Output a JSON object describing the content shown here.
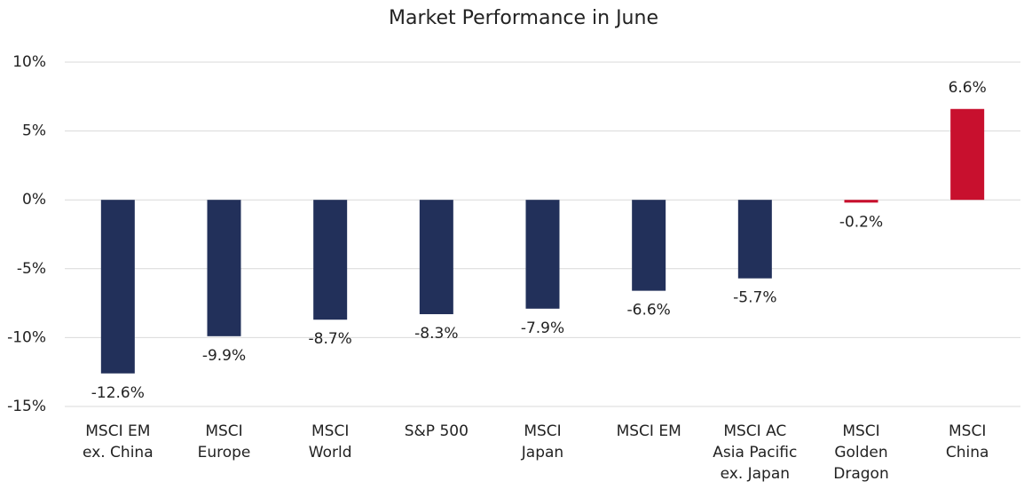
{
  "chart_data": {
    "type": "bar",
    "title": "Market Performance in June",
    "categories": [
      "MSCI EM\nex. China",
      "MSCI\nEurope",
      "MSCI\nWorld",
      "S&P 500",
      "MSCI\nJapan",
      "MSCI EM",
      "MSCI AC\nAsia Pacific\nex. Japan",
      "MSCI\nGolden\nDragon",
      "MSCI\nChina"
    ],
    "values": [
      -12.6,
      -9.9,
      -8.7,
      -8.3,
      -7.9,
      -6.6,
      -5.7,
      -0.2,
      6.6
    ],
    "value_labels": [
      "-12.6%",
      "-9.9%",
      "-8.7%",
      "-8.3%",
      "-7.9%",
      "-6.6%",
      "-5.7%",
      "-0.2%",
      "6.6%"
    ],
    "colors": [
      "#22305a",
      "#22305a",
      "#22305a",
      "#22305a",
      "#22305a",
      "#22305a",
      "#22305a",
      "#c8102e",
      "#c8102e"
    ],
    "ylim": [
      -15,
      10
    ],
    "yticks": [
      {
        "value": -15,
        "label": "-15%"
      },
      {
        "value": -10,
        "label": "-10%"
      },
      {
        "value": -5,
        "label": "-5%"
      },
      {
        "value": 0,
        "label": "0%"
      },
      {
        "value": 5,
        "label": "5%"
      },
      {
        "value": 10,
        "label": "10%"
      }
    ],
    "grid": true
  }
}
